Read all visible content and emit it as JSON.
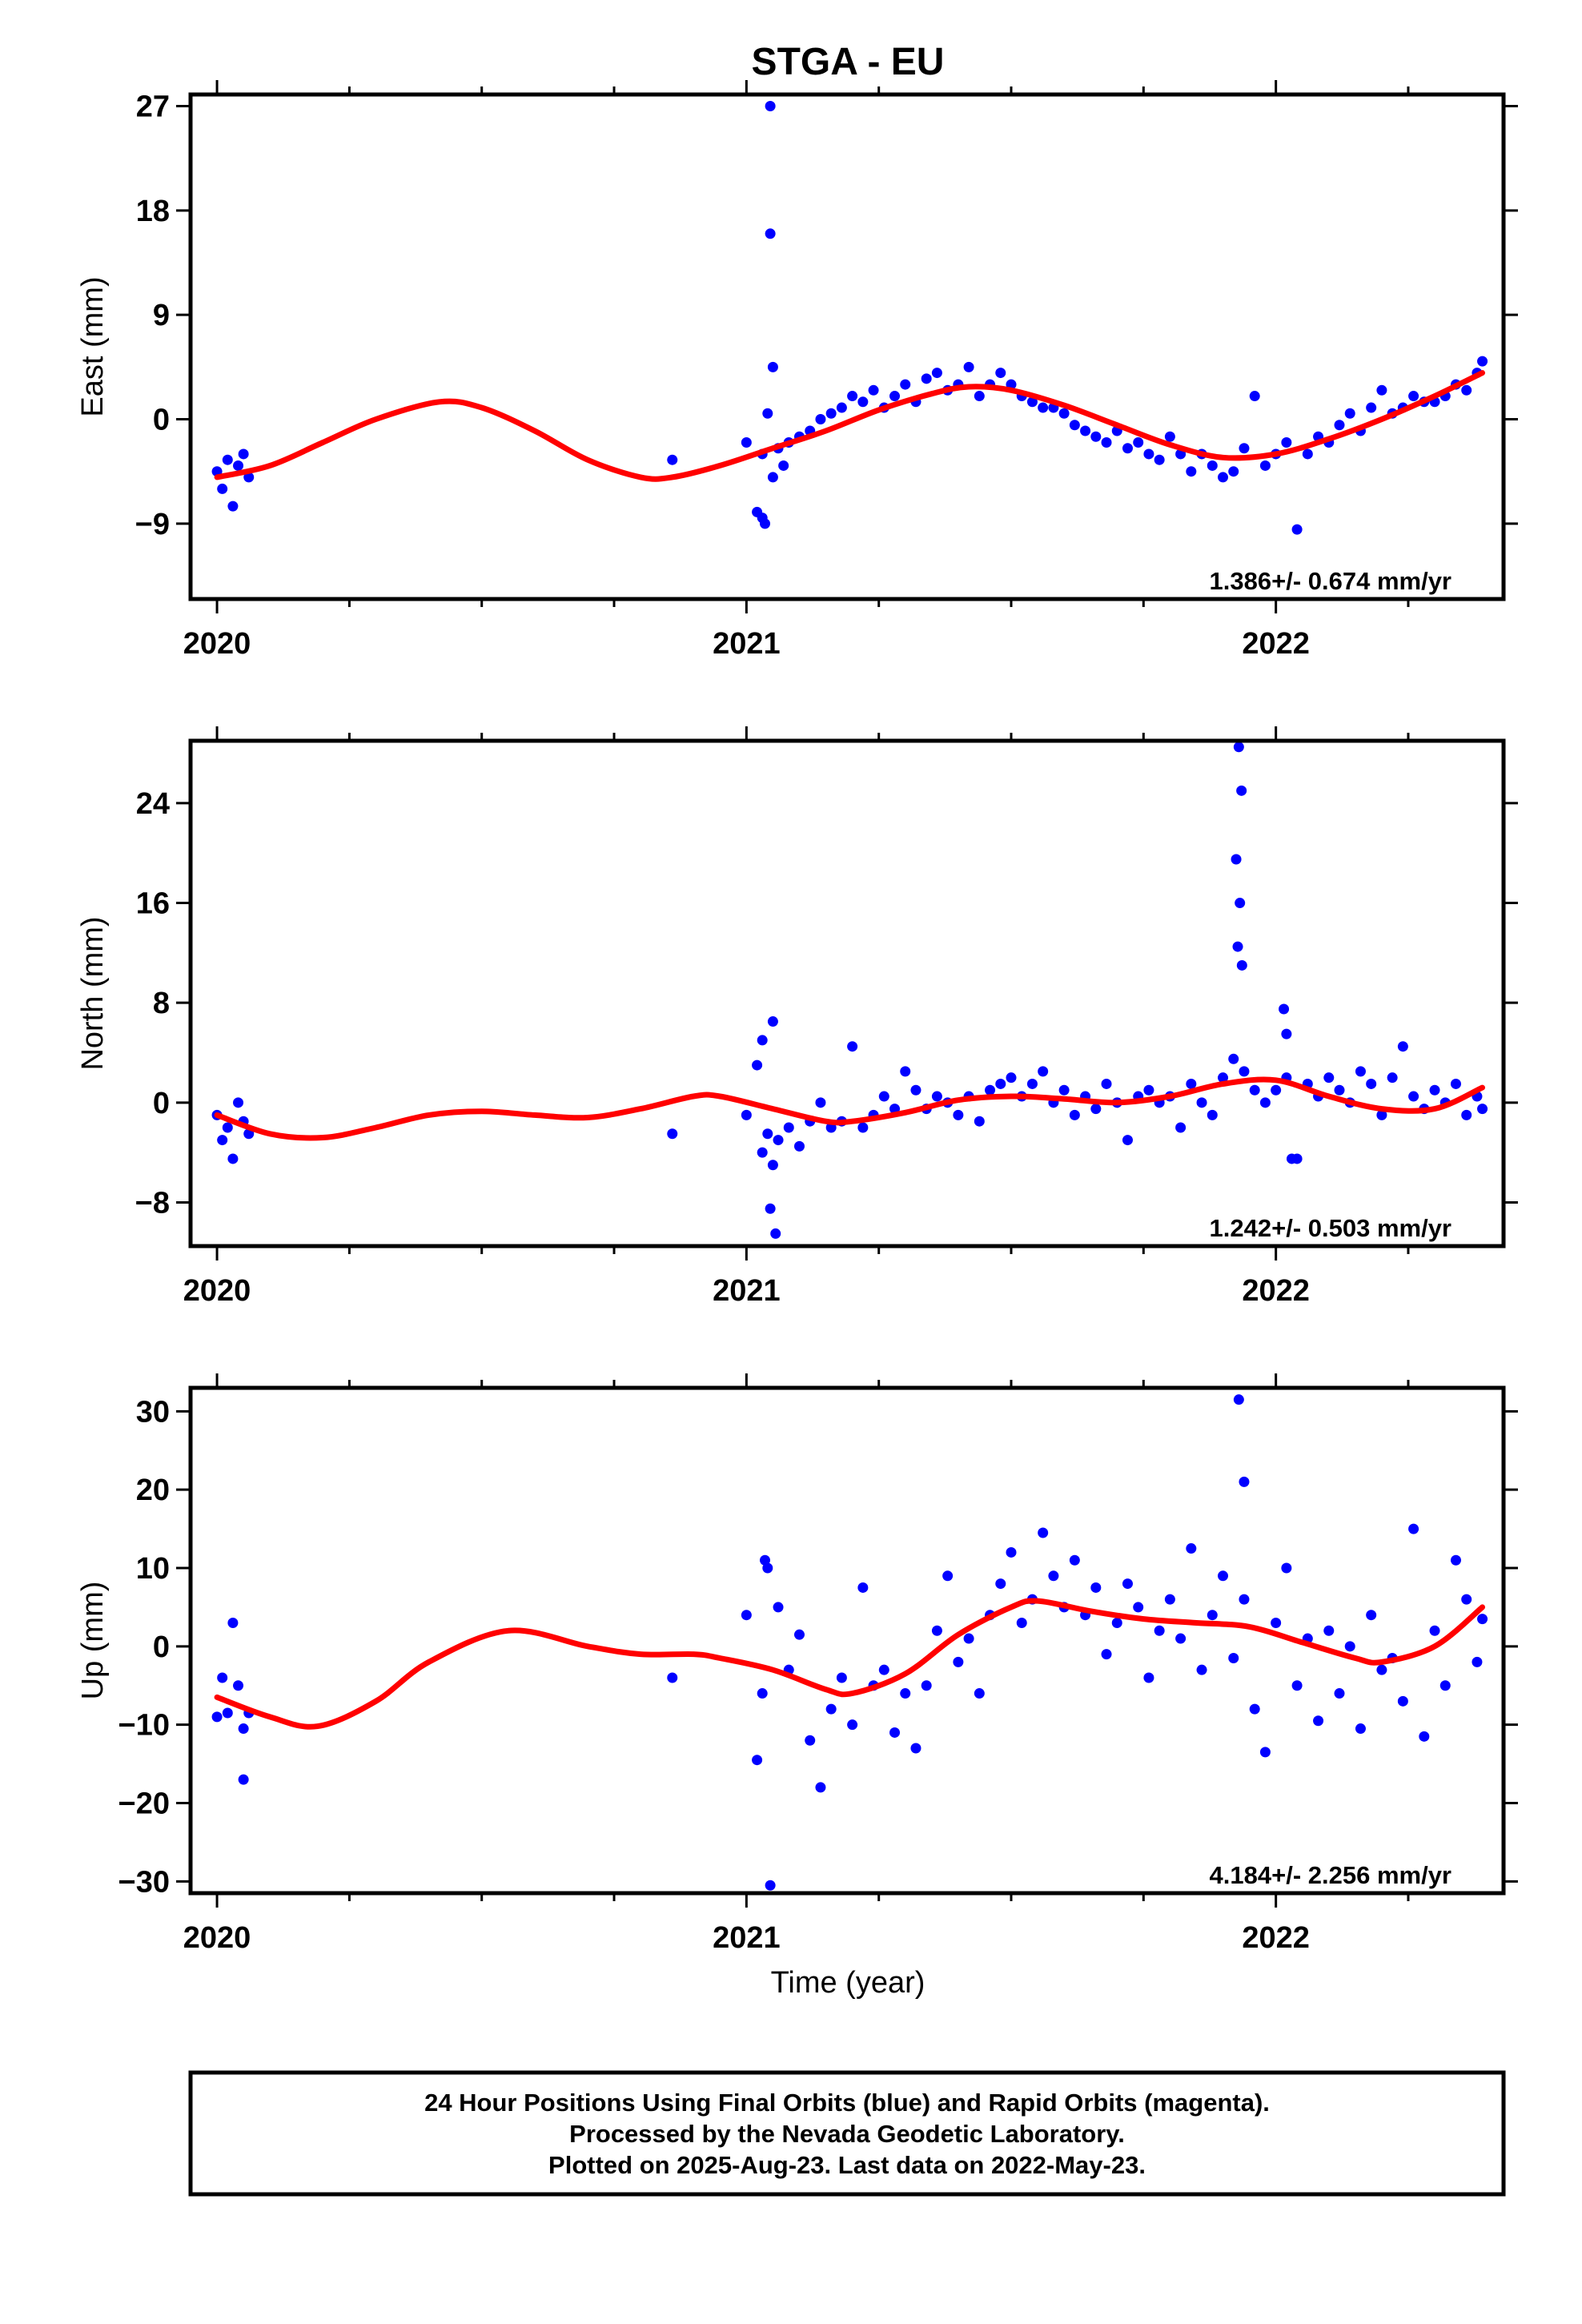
{
  "title": "STGA - EU",
  "xlabel": "Time (year)",
  "caption": {
    "line1": "24 Hour Positions Using Final Orbits (blue) and Rapid Orbits (magenta).",
    "line2": "Processed by the Nevada Geodetic Laboratory.",
    "line3": "Plotted on 2025-Aug-23. Last data on 2022-May-23."
  },
  "colors": {
    "data": "#0000ff",
    "model": "#ff0000",
    "frame": "#000000"
  },
  "chart_data": [
    {
      "type": "scatter",
      "ylabel": "East (mm)",
      "xlim": [
        2019.95,
        2022.43
      ],
      "ylim": [
        -15.5,
        28
      ],
      "xticks": [
        2020,
        2021,
        2022
      ],
      "yticks": [
        -9,
        0,
        9,
        18,
        27
      ],
      "rate_label": "1.386+/- 0.674 mm/yr",
      "model_curve": {
        "x": [
          2020.0,
          2020.1,
          2020.2,
          2020.3,
          2020.42,
          2020.5,
          2020.6,
          2020.7,
          2020.8,
          2020.86,
          2020.95,
          2021.05,
          2021.15,
          2021.25,
          2021.35,
          2021.42,
          2021.5,
          2021.6,
          2021.7,
          2021.8,
          2021.9,
          2022.0,
          2022.1,
          2022.2,
          2022.3,
          2022.39
        ],
        "y": [
          -5.0,
          -4.0,
          -2.0,
          0.0,
          1.5,
          1.0,
          -1.0,
          -3.5,
          -5.0,
          -5.0,
          -4.0,
          -2.5,
          -1.0,
          0.8,
          2.2,
          2.8,
          2.5,
          1.2,
          -0.5,
          -2.2,
          -3.3,
          -3.0,
          -1.7,
          0.0,
          2.0,
          4.0
        ]
      },
      "series": [
        {
          "x": [
            2020.0,
            2020.01,
            2020.02,
            2020.03,
            2020.04,
            2020.05,
            2020.06,
            2020.86,
            2021.0,
            2021.02,
            2021.03,
            2021.04,
            2021.05,
            2021.06,
            2021.07,
            2021.08,
            2021.1,
            2021.12,
            2021.14,
            2021.16,
            2021.18,
            2021.2,
            2021.22,
            2021.24,
            2021.26,
            2021.28,
            2021.3,
            2021.32,
            2021.34,
            2021.36,
            2021.38,
            2021.4,
            2021.42,
            2021.44,
            2021.46,
            2021.48,
            2021.5,
            2021.52,
            2021.54,
            2021.56,
            2021.58,
            2021.6,
            2021.62,
            2021.64,
            2021.66,
            2021.68,
            2021.7,
            2021.72,
            2021.74,
            2021.76,
            2021.78,
            2021.8,
            2021.82,
            2021.84,
            2021.86,
            2021.88,
            2021.9,
            2021.92,
            2021.94,
            2021.96,
            2021.98,
            2022.0,
            2022.02,
            2022.04,
            2022.06,
            2022.08,
            2022.1,
            2022.12,
            2022.14,
            2022.16,
            2022.18,
            2022.2,
            2022.22,
            2022.24,
            2022.26,
            2022.28,
            2022.3,
            2022.32,
            2022.34,
            2022.36,
            2022.38,
            2022.39,
            2021.045,
            2021.045,
            2021.05,
            2021.035,
            2021.03
          ],
          "y": [
            -4.5,
            -6.0,
            -3.5,
            -7.5,
            -4.0,
            -3.0,
            -5.0,
            -3.5,
            -2.0,
            -8.0,
            -3.0,
            0.5,
            -5.0,
            -2.5,
            -4.0,
            -2.0,
            -1.5,
            -1.0,
            0.0,
            0.5,
            1.0,
            2.0,
            1.5,
            2.5,
            1.0,
            2.0,
            3.0,
            1.5,
            3.5,
            4.0,
            2.5,
            3.0,
            4.5,
            2.0,
            3.0,
            4.0,
            3.0,
            2.0,
            1.5,
            1.0,
            1.0,
            0.5,
            -0.5,
            -1.0,
            -1.5,
            -2.0,
            -1.0,
            -2.5,
            -2.0,
            -3.0,
            -3.5,
            -1.5,
            -3.0,
            -4.5,
            -3.0,
            -4.0,
            -5.0,
            -4.5,
            -2.5,
            2.0,
            -4.0,
            -3.0,
            -2.0,
            -9.5,
            -3.0,
            -1.5,
            -2.0,
            -0.5,
            0.5,
            -1.0,
            1.0,
            2.5,
            0.5,
            1.0,
            2.0,
            1.5,
            1.5,
            2.0,
            3.0,
            2.5,
            4.0,
            5.0,
            27.0,
            16.0,
            4.5,
            -9.0,
            -8.5
          ]
        }
      ]
    },
    {
      "type": "scatter",
      "ylabel": "North (mm)",
      "xlim": [
        2019.95,
        2022.43
      ],
      "ylim": [
        -11.5,
        29
      ],
      "xticks": [
        2020,
        2021,
        2022
      ],
      "yticks": [
        -8,
        0,
        8,
        16,
        24
      ],
      "rate_label": "1.242+/- 0.503 mm/yr",
      "model_curve": {
        "x": [
          2020.0,
          2020.1,
          2020.2,
          2020.3,
          2020.4,
          2020.5,
          2020.6,
          2020.7,
          2020.8,
          2020.9,
          2020.95,
          2021.05,
          2021.15,
          2021.2,
          2021.3,
          2021.4,
          2021.5,
          2021.6,
          2021.7,
          2021.8,
          2021.9,
          2022.0,
          2022.1,
          2022.2,
          2022.3,
          2022.39
        ],
        "y": [
          -1.0,
          -2.5,
          -2.8,
          -2.0,
          -1.0,
          -0.7,
          -1.0,
          -1.2,
          -0.5,
          0.5,
          0.5,
          -0.5,
          -1.5,
          -1.5,
          -0.8,
          0.2,
          0.5,
          0.3,
          0.0,
          0.5,
          1.5,
          1.8,
          0.5,
          -0.5,
          -0.5,
          1.2
        ]
      },
      "series": [
        {
          "x": [
            2020.0,
            2020.01,
            2020.02,
            2020.03,
            2020.04,
            2020.05,
            2020.06,
            2020.86,
            2021.0,
            2021.02,
            2021.03,
            2021.04,
            2021.05,
            2021.06,
            2021.08,
            2021.1,
            2021.12,
            2021.14,
            2021.16,
            2021.18,
            2021.2,
            2021.22,
            2021.24,
            2021.26,
            2021.28,
            2021.3,
            2021.32,
            2021.34,
            2021.36,
            2021.38,
            2021.4,
            2021.42,
            2021.44,
            2021.46,
            2021.48,
            2021.5,
            2021.52,
            2021.54,
            2021.56,
            2021.58,
            2021.6,
            2021.62,
            2021.64,
            2021.66,
            2021.68,
            2021.7,
            2021.72,
            2021.74,
            2021.76,
            2021.78,
            2021.8,
            2021.82,
            2021.84,
            2021.86,
            2021.88,
            2021.9,
            2021.92,
            2021.94,
            2021.96,
            2021.98,
            2022.0,
            2022.02,
            2022.04,
            2022.06,
            2022.08,
            2022.1,
            2022.12,
            2022.14,
            2022.16,
            2022.18,
            2022.2,
            2022.22,
            2022.24,
            2022.26,
            2022.28,
            2022.3,
            2022.32,
            2022.34,
            2022.36,
            2022.38,
            2022.39,
            2021.93,
            2021.935,
            2021.925,
            2021.932,
            2021.928,
            2021.936,
            2022.015,
            2022.02,
            2022.03,
            2021.05,
            2021.045,
            2021.055,
            2021.03
          ],
          "y": [
            -1.0,
            -3.0,
            -2.0,
            -4.5,
            0.0,
            -1.5,
            -2.5,
            -2.5,
            -1.0,
            3.0,
            -4.0,
            -2.5,
            -5.0,
            -3.0,
            -2.0,
            -3.5,
            -1.5,
            0.0,
            -2.0,
            -1.5,
            4.5,
            -2.0,
            -1.0,
            0.5,
            -0.5,
            2.5,
            1.0,
            -0.5,
            0.5,
            0.0,
            -1.0,
            0.5,
            -1.5,
            1.0,
            1.5,
            2.0,
            0.5,
            1.5,
            2.5,
            0.0,
            1.0,
            -1.0,
            0.5,
            -0.5,
            1.5,
            0.0,
            -3.0,
            0.5,
            1.0,
            0.0,
            0.5,
            -2.0,
            1.5,
            0.0,
            -1.0,
            2.0,
            3.5,
            2.5,
            1.0,
            0.0,
            1.0,
            2.0,
            -4.5,
            1.5,
            0.5,
            2.0,
            1.0,
            0.0,
            2.5,
            1.5,
            -1.0,
            2.0,
            4.5,
            0.5,
            -0.5,
            1.0,
            0.0,
            1.5,
            -1.0,
            0.5,
            -0.5,
            28.5,
            25.0,
            19.5,
            16.0,
            12.5,
            11.0,
            7.5,
            5.5,
            -4.5,
            6.5,
            -8.5,
            -10.5,
            5.0
          ]
        }
      ]
    },
    {
      "type": "scatter",
      "ylabel": "Up (mm)",
      "xlim": [
        2019.95,
        2022.43
      ],
      "ylim": [
        -31.5,
        33
      ],
      "xticks": [
        2020,
        2021,
        2022
      ],
      "yticks": [
        -30,
        -20,
        -10,
        0,
        10,
        20,
        30
      ],
      "rate_label": "4.184+/- 2.256 mm/yr",
      "model_curve": {
        "x": [
          2020.0,
          2020.1,
          2020.19,
          2020.3,
          2020.4,
          2020.55,
          2020.7,
          2020.8,
          2020.9,
          2020.95,
          2021.05,
          2021.15,
          2021.2,
          2021.3,
          2021.4,
          2021.5,
          2021.55,
          2021.65,
          2021.75,
          2021.85,
          2021.95,
          2022.05,
          2022.15,
          2022.2,
          2022.3,
          2022.39
        ],
        "y": [
          -6.5,
          -9.0,
          -10.2,
          -7.0,
          -2.0,
          2.0,
          0.0,
          -1.0,
          -1.0,
          -1.5,
          -3.0,
          -5.5,
          -6.0,
          -3.5,
          1.5,
          5.0,
          5.8,
          4.5,
          3.5,
          3.0,
          2.5,
          0.5,
          -1.5,
          -2.0,
          0.0,
          5.0
        ]
      },
      "series": [
        {
          "x": [
            2020.0,
            2020.01,
            2020.02,
            2020.03,
            2020.04,
            2020.05,
            2020.06,
            2020.86,
            2021.0,
            2021.02,
            2021.03,
            2021.04,
            2021.06,
            2021.08,
            2021.1,
            2021.12,
            2021.14,
            2021.16,
            2021.18,
            2021.2,
            2021.22,
            2021.24,
            2021.26,
            2021.28,
            2021.3,
            2021.32,
            2021.34,
            2021.36,
            2021.38,
            2021.4,
            2021.42,
            2021.44,
            2021.46,
            2021.48,
            2021.5,
            2021.52,
            2021.54,
            2021.56,
            2021.58,
            2021.6,
            2021.62,
            2021.64,
            2021.66,
            2021.68,
            2021.7,
            2021.72,
            2021.74,
            2021.76,
            2021.78,
            2021.8,
            2021.82,
            2021.84,
            2021.86,
            2021.88,
            2021.9,
            2021.92,
            2021.94,
            2021.96,
            2021.98,
            2022.0,
            2022.02,
            2022.04,
            2022.06,
            2022.08,
            2022.1,
            2022.12,
            2022.14,
            2022.16,
            2022.18,
            2022.2,
            2022.22,
            2022.24,
            2022.26,
            2022.28,
            2022.3,
            2022.32,
            2022.34,
            2022.36,
            2022.38,
            2022.39,
            2021.045,
            2021.93,
            2021.94,
            2021.035,
            2020.05
          ],
          "y": [
            -9.0,
            -4.0,
            -8.5,
            3.0,
            -5.0,
            -10.5,
            -8.5,
            -4.0,
            4.0,
            -14.5,
            -6.0,
            10.0,
            5.0,
            -3.0,
            1.5,
            -12.0,
            -18.0,
            -8.0,
            -4.0,
            -10.0,
            7.5,
            -5.0,
            -3.0,
            -11.0,
            -6.0,
            -13.0,
            -5.0,
            2.0,
            9.0,
            -2.0,
            1.0,
            -6.0,
            4.0,
            8.0,
            12.0,
            3.0,
            6.0,
            14.5,
            9.0,
            5.0,
            11.0,
            4.0,
            7.5,
            -1.0,
            3.0,
            8.0,
            5.0,
            -4.0,
            2.0,
            6.0,
            1.0,
            12.5,
            -3.0,
            4.0,
            9.0,
            -1.5,
            6.0,
            -8.0,
            -13.5,
            3.0,
            10.0,
            -5.0,
            1.0,
            -9.5,
            2.0,
            -6.0,
            0.0,
            -10.5,
            4.0,
            -3.0,
            -1.5,
            -7.0,
            15.0,
            -11.5,
            2.0,
            -5.0,
            11.0,
            6.0,
            -2.0,
            3.5,
            -30.5,
            31.5,
            21.0,
            11.0,
            -17.0
          ]
        }
      ]
    }
  ]
}
